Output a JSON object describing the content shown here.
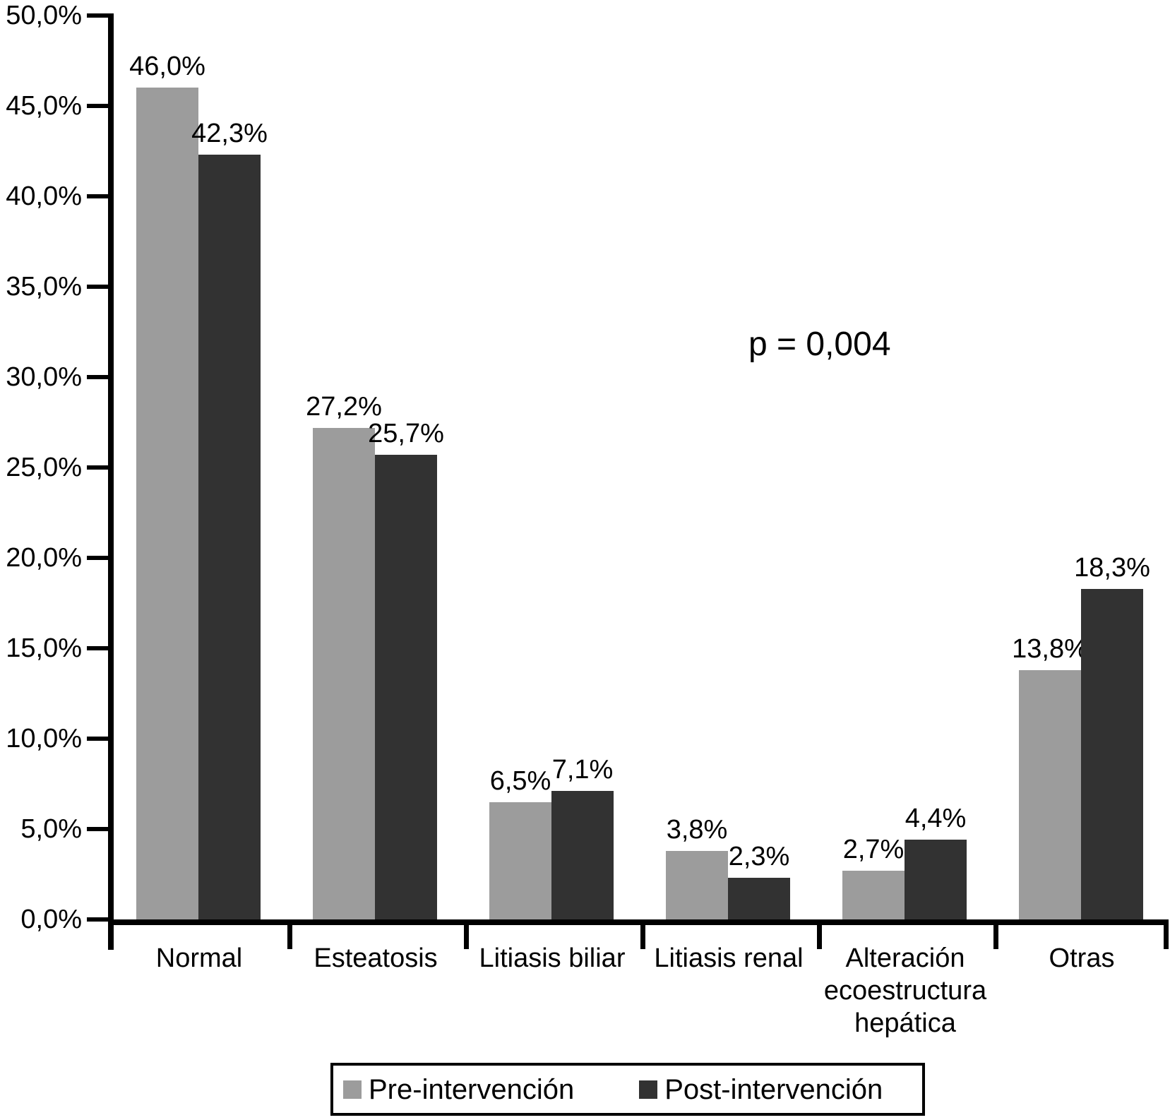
{
  "chart_data": {
    "type": "bar",
    "title": "",
    "xlabel": "",
    "ylabel": "",
    "categories": [
      "Normal",
      "Esteatosis",
      "Litiasis biliar",
      "Litiasis renal",
      "Alteración ecoestructura hepática",
      "Otras"
    ],
    "series": [
      {
        "name": "Pre-intervención",
        "color": "#9c9c9c",
        "values": [
          46.0,
          27.2,
          6.5,
          3.8,
          2.7,
          13.8
        ],
        "value_labels": [
          "46,0%",
          "27,2%",
          "6,5%",
          "3,8%",
          "2,7%",
          "13,8%"
        ]
      },
      {
        "name": "Post-intervención",
        "color": "#323232",
        "values": [
          42.3,
          25.7,
          7.1,
          2.3,
          4.4,
          18.3
        ],
        "value_labels": [
          "42,3%",
          "25,7%",
          "7,1%",
          "2,3%",
          "4,4%",
          "18,3%"
        ]
      }
    ],
    "y_axis": {
      "min": 0,
      "max": 50,
      "step": 5,
      "tick_labels": [
        "0,0%",
        "5,0%",
        "10,0%",
        "15,0%",
        "20,0%",
        "25,0%",
        "30,0%",
        "35,0%",
        "40,0%",
        "45,0%",
        "50,0%"
      ]
    },
    "annotation": "p = 0,004",
    "legend_position": "bottom",
    "grid": false,
    "axis_color": "#000000",
    "background_color": "#ffffff"
  }
}
